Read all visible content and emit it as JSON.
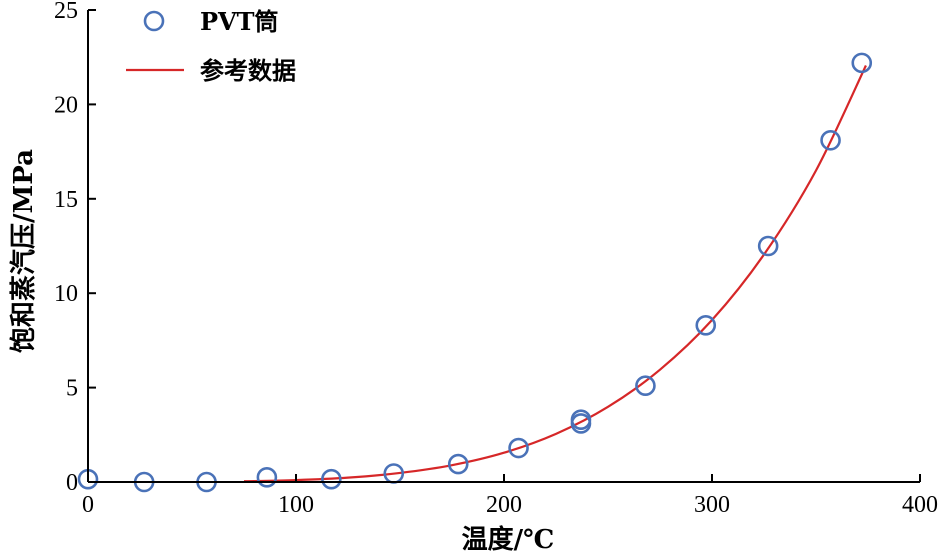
{
  "chart_data": {
    "type": "line",
    "title": "",
    "xlabel": "温度/℃",
    "ylabel": "饱和蒸汽压/MPa",
    "xlim": [
      0,
      400
    ],
    "ylim": [
      0,
      25
    ],
    "xticks": [
      0,
      100,
      200,
      300,
      400
    ],
    "yticks": [
      0,
      5,
      10,
      15,
      20,
      25
    ],
    "grid": false,
    "legend_position": "top-left",
    "series": [
      {
        "name": "PVT筒",
        "kind": "scatter",
        "marker": "circle-open",
        "color": "#4a72b8",
        "x": [
          0,
          27,
          57,
          86,
          117,
          147,
          178,
          207,
          237,
          237,
          268,
          297,
          327,
          357,
          372
        ],
        "y": [
          0.15,
          0.0,
          0.0,
          0.25,
          0.15,
          0.45,
          0.95,
          1.8,
          3.1,
          3.3,
          5.1,
          8.3,
          12.5,
          18.1,
          22.2
        ]
      },
      {
        "name": "参考数据",
        "kind": "line",
        "color": "#d62728",
        "x": [
          75,
          100,
          125,
          150,
          175,
          200,
          225,
          250,
          275,
          300,
          325,
          350,
          374
        ],
        "y": [
          0.04,
          0.1,
          0.23,
          0.48,
          0.89,
          1.55,
          2.55,
          3.98,
          5.95,
          8.58,
          12.05,
          16.5,
          22.06
        ]
      }
    ]
  }
}
